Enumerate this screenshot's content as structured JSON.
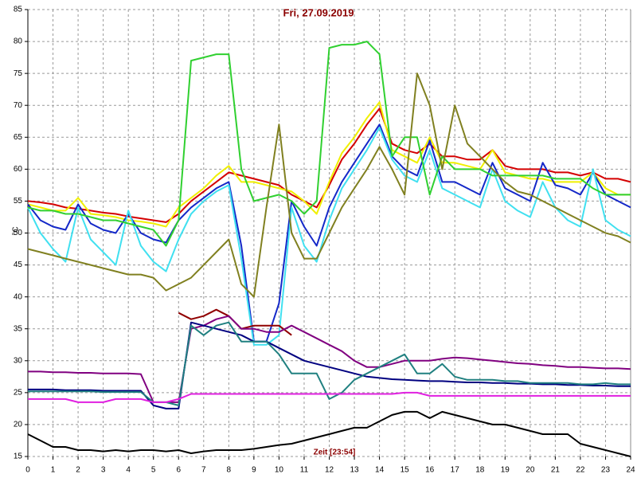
{
  "chart_data": {
    "type": "line",
    "title": "Fri, 27.09.2019",
    "y_label": "°C",
    "annotation": "Zeit [23:54]",
    "xlim": [
      0,
      24
    ],
    "ylim": [
      15,
      85
    ],
    "xticks": [
      0,
      1,
      2,
      3,
      4,
      5,
      6,
      7,
      8,
      9,
      10,
      11,
      12,
      13,
      14,
      15,
      16,
      17,
      18,
      19,
      20,
      21,
      22,
      23,
      24
    ],
    "yticks": [
      15,
      20,
      25,
      30,
      35,
      40,
      45,
      50,
      55,
      60,
      65,
      70,
      75,
      80,
      85
    ],
    "grid": true,
    "x": [
      0,
      0.5,
      1,
      1.5,
      2,
      2.5,
      3,
      3.5,
      4,
      4.5,
      5,
      5.5,
      6,
      6.5,
      7,
      7.5,
      8,
      8.5,
      9,
      9.5,
      10,
      10.5,
      11,
      11.5,
      12,
      12.5,
      13,
      13.5,
      14,
      14.5,
      15,
      15.5,
      16,
      16.5,
      17,
      17.5,
      18,
      18.5,
      19,
      19.5,
      20,
      20.5,
      21,
      21.5,
      22,
      22.5,
      23,
      23.5,
      24
    ],
    "series": [
      {
        "color": "#d40000",
        "values": [
          55,
          54.8,
          54.5,
          54,
          53.8,
          53.5,
          53.2,
          53,
          52.6,
          52.3,
          52,
          51.7,
          53,
          55,
          56.5,
          58,
          59.5,
          59,
          58.5,
          58,
          57.5,
          56,
          55,
          54,
          57.5,
          61.5,
          64,
          67,
          69.5,
          64,
          63,
          62.5,
          64,
          62,
          62,
          61.5,
          61.5,
          63,
          60.5,
          60,
          60,
          60,
          59.5,
          59.5,
          59,
          59.5,
          58.5,
          58.5,
          58
        ]
      },
      {
        "color": "#f0f000",
        "values": [
          54.5,
          54,
          53.5,
          53.5,
          55.5,
          53,
          52.8,
          52.5,
          52,
          51.8,
          51.5,
          51,
          54,
          55.5,
          57,
          59,
          60.5,
          58,
          58,
          57.5,
          57,
          56.5,
          55,
          53,
          58,
          62.5,
          65,
          68,
          70.5,
          63,
          62,
          61,
          65,
          61,
          61,
          60.5,
          60,
          63,
          59.5,
          59,
          58.5,
          58.5,
          58,
          58,
          58,
          59.5,
          57,
          56,
          56
        ]
      },
      {
        "color": "#1428c8",
        "values": [
          54.5,
          52,
          51,
          50.5,
          54.5,
          51.5,
          50.5,
          50,
          53,
          50,
          49,
          48.5,
          52,
          54,
          55.5,
          57,
          58,
          48,
          33,
          33,
          39,
          55,
          51,
          48,
          54,
          58,
          61,
          64,
          67,
          62,
          60,
          59,
          64.5,
          58,
          58,
          57,
          56,
          61,
          57,
          56,
          55,
          61,
          57.5,
          57,
          56,
          59.5,
          56,
          55,
          54
        ]
      },
      {
        "color": "#40e0f0",
        "values": [
          54,
          50,
          47.5,
          45.5,
          54,
          49,
          47,
          45,
          53.5,
          48,
          45.5,
          44,
          49,
          53,
          55,
          56.5,
          57.5,
          46,
          32.5,
          32.5,
          34,
          54,
          48,
          45.5,
          52,
          57,
          60,
          63,
          66.5,
          61.5,
          59,
          58,
          63,
          57,
          56,
          55,
          54,
          60,
          55,
          53.5,
          52.5,
          58,
          54,
          52,
          51,
          60,
          52,
          50.5,
          49.5
        ]
      },
      {
        "color": "#30d030",
        "values": [
          54,
          53.5,
          53.5,
          53,
          53,
          52.5,
          52,
          52,
          51.5,
          51,
          50.5,
          48,
          52,
          77,
          77.5,
          78,
          78,
          60,
          55,
          55.5,
          56,
          55,
          53,
          55,
          79,
          79.5,
          79.5,
          80,
          78,
          62,
          65,
          65,
          56,
          62,
          60,
          60,
          60,
          59,
          59,
          59,
          59,
          59,
          58.5,
          58.5,
          58.5,
          57,
          56,
          56,
          56
        ]
      },
      {
        "color": "#808020",
        "values": [
          47.5,
          47,
          46.5,
          46,
          45.5,
          45,
          44.5,
          44,
          43.5,
          43.5,
          43,
          41,
          42,
          43,
          45,
          47,
          49,
          42,
          40,
          54,
          67,
          50,
          46,
          46,
          50,
          54,
          57,
          60,
          63.5,
          60,
          56,
          75,
          70,
          60,
          70,
          64,
          62,
          60,
          58,
          56.5,
          56,
          55,
          54,
          53,
          52,
          51,
          50,
          49.5,
          48.5
        ]
      },
      {
        "color": "#900000",
        "values": [
          null,
          null,
          null,
          null,
          null,
          null,
          null,
          null,
          null,
          null,
          null,
          null,
          37.5,
          36.5,
          37,
          38,
          37,
          35,
          35.5,
          35.5,
          35.5,
          34,
          null,
          null,
          null,
          null,
          null,
          null,
          null,
          null,
          null,
          null,
          null,
          null,
          null,
          null,
          null,
          null,
          null,
          null,
          null,
          null,
          null,
          null,
          null,
          null,
          null,
          null,
          null
        ]
      },
      {
        "color": "#800080",
        "values": [
          28.3,
          28.3,
          28.2,
          28.2,
          28.1,
          28.1,
          28,
          28,
          28,
          27.9,
          23.5,
          23.5,
          23.5,
          35,
          35.5,
          36.5,
          37,
          35,
          35,
          34.5,
          34.5,
          35.5,
          34.5,
          33.5,
          32.5,
          31.5,
          30,
          29,
          29,
          29.5,
          30,
          30,
          30,
          30.3,
          30.5,
          30.4,
          30.2,
          30,
          29.8,
          29.6,
          29.5,
          29.3,
          29.2,
          29,
          29,
          28.9,
          28.8,
          28.8,
          28.7
        ]
      },
      {
        "color": "#000080",
        "values": [
          25.5,
          25.5,
          25.5,
          25.4,
          25.4,
          25.4,
          25.3,
          25.3,
          25.3,
          25.3,
          23,
          22.5,
          22.5,
          36,
          35.5,
          35,
          34.5,
          34,
          33,
          33,
          32,
          31,
          30,
          29.5,
          29,
          28.5,
          28,
          27.5,
          27.3,
          27.1,
          27,
          26.9,
          26.8,
          26.8,
          26.7,
          26.6,
          26.6,
          26.5,
          26.5,
          26.4,
          26.4,
          26.3,
          26.3,
          26.2,
          26.2,
          26.1,
          26.1,
          26,
          26
        ]
      },
      {
        "color": "#208080",
        "values": [
          25.2,
          25.2,
          25.2,
          25.2,
          25.2,
          25.2,
          25.1,
          25.1,
          25.1,
          25.1,
          23.5,
          23.5,
          23,
          35.5,
          34,
          35.5,
          36,
          33,
          33,
          33,
          31,
          28,
          28,
          28,
          24,
          25,
          27,
          28,
          29,
          30,
          31,
          28,
          28,
          29.5,
          27.5,
          27,
          27,
          27,
          26.8,
          26.8,
          26.5,
          26.5,
          26.5,
          26.5,
          26.3,
          26.3,
          26.5,
          26.3,
          26.3
        ]
      },
      {
        "color": "#e020e0",
        "values": [
          24,
          24,
          24,
          24,
          23.5,
          23.5,
          23.5,
          24,
          24,
          24,
          23.5,
          23.5,
          24,
          24.8,
          24.8,
          24.8,
          24.8,
          24.8,
          24.8,
          24.8,
          24.8,
          24.8,
          24.8,
          24.8,
          24.8,
          24.8,
          24.8,
          24.8,
          24.8,
          24.8,
          25,
          25,
          24.5,
          24.5,
          24.5,
          24.5,
          24.5,
          24.5,
          24.5,
          24.5,
          24.5,
          24.5,
          24.5,
          24.5,
          24.5,
          24.5,
          24.5,
          24.5,
          24.5
        ]
      },
      {
        "color": "#000000",
        "values": [
          18.5,
          17.5,
          16.5,
          16.5,
          16,
          16,
          15.8,
          16,
          15.8,
          16,
          16,
          15.8,
          16,
          15.5,
          15.8,
          16,
          16,
          16,
          16.2,
          16.5,
          16.8,
          17,
          17.5,
          18,
          18.5,
          19,
          19.5,
          19.5,
          20.5,
          21.5,
          22,
          22,
          21,
          22,
          21.5,
          21,
          20.5,
          20,
          20,
          19.5,
          19,
          18.5,
          18.5,
          18.5,
          17,
          16.5,
          16,
          15.5,
          15
        ]
      }
    ]
  }
}
